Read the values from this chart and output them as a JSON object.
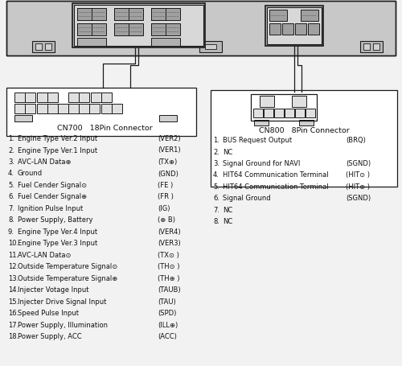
{
  "bg_color": "#f2f2f2",
  "line_color": "#1a1a1a",
  "cn700_title": "CN700   18Pin Connector",
  "cn800_title": "CN800   8Pin Connector",
  "cn700_items": [
    [
      "1.",
      "Engine Type Ver.2 Input",
      "(VER2)"
    ],
    [
      "2.",
      "Engine Type Ver.1 Input",
      "(VER1)"
    ],
    [
      "3.",
      "AVC-LAN Data⊕",
      "(TX⊕)"
    ],
    [
      "4.",
      "Ground",
      "(GND)"
    ],
    [
      "5.",
      "Fuel Cender Signal⊙",
      "(FE )"
    ],
    [
      "6.",
      "Fuel Cender Signal⊕",
      "(FR )"
    ],
    [
      "7.",
      "Ignition Pulse Input",
      "(IG)"
    ],
    [
      "8.",
      "Power Supply, Battery",
      "(⊕ B)"
    ],
    [
      "9.",
      "Engine Type Ver.4 Input",
      "(VER4)"
    ],
    [
      "10.",
      "Engine Type Ver.3 Input",
      "(VER3)"
    ],
    [
      "11.",
      "AVC-LAN Data⊙",
      "(TX⊙ )"
    ],
    [
      "12.",
      "Outside Temperature Signal⊙",
      "(TH⊙ )"
    ],
    [
      "13.",
      "Outside Temperature Signal⊕",
      "(TH⊕ )"
    ],
    [
      "14.",
      "Injecter Votage Input",
      "(TAUB)"
    ],
    [
      "15.",
      "Injecter Drive Signal Input",
      "(TAU)"
    ],
    [
      "16.",
      "Speed Pulse Input",
      "(SPD)"
    ],
    [
      "17.",
      "Power Supply, Illumination",
      "(ILL⊕)"
    ],
    [
      "18.",
      "Power Supply, ACC",
      "(ACC)"
    ]
  ],
  "cn800_items": [
    [
      "1.",
      "BUS Request Output",
      "(BRQ)"
    ],
    [
      "2.",
      "NC",
      ""
    ],
    [
      "3.",
      "Signal Ground for NAVI",
      "(SGND)"
    ],
    [
      "4.",
      "HIT64 Communication Terminal",
      "(HIT⊙ )"
    ],
    [
      "5.",
      "HIT64 Communication Terminal",
      "(HIT⊕ )"
    ],
    [
      "6.",
      "Signal Ground",
      "(SGND)"
    ],
    [
      "7.",
      "NC",
      ""
    ],
    [
      "8.",
      "NC",
      ""
    ]
  ]
}
